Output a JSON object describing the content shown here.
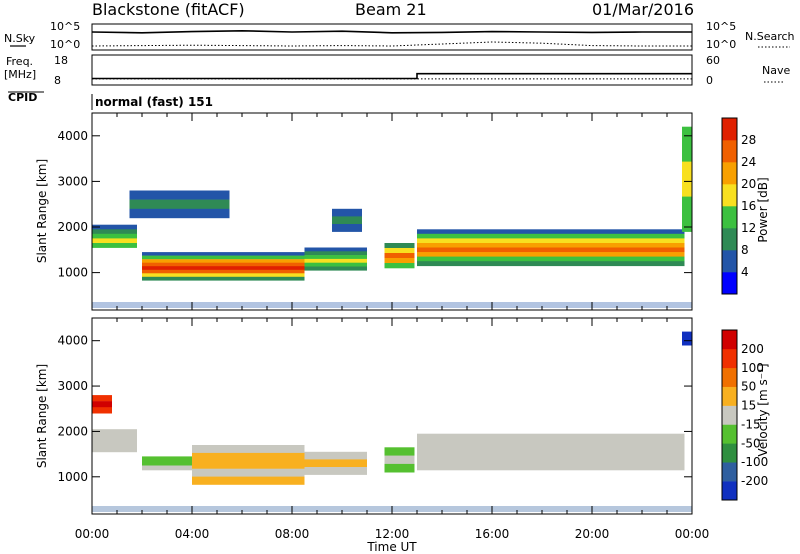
{
  "header": {
    "station": "Blackstone (fitACF)",
    "beam": "Beam 21",
    "date": "01/Mar/2016"
  },
  "top_panels": {
    "nsky_label": "N.Sky",
    "nsky_tick_high": "10^5",
    "nsky_tick_low": "10^0",
    "nsearch_label": "N.Search",
    "nsearch_tick_high": "10^5",
    "nsearch_tick_low": "10^0",
    "freq_label": "Freq.",
    "freq_unit": "[MHz]",
    "freq_tick_high": "18",
    "freq_tick_low": "8",
    "nave_label": "Nave",
    "nave_tick_high": "60",
    "nave_tick_low": "0",
    "cpid_label": "CPID",
    "cpid_text": "normal (fast) 151"
  },
  "axis": {
    "x_label": "Time UT",
    "x_ticks": [
      "00:00",
      "04:00",
      "08:00",
      "12:00",
      "16:00",
      "20:00",
      "00:00"
    ],
    "y_label": "Slant Range [km]",
    "y_ticks": [
      "1000",
      "2000",
      "3000",
      "4000"
    ]
  },
  "colorbars": {
    "power": {
      "label": "Power [dB]",
      "ticks": [
        "4",
        "8",
        "12",
        "16",
        "20",
        "24",
        "28"
      ],
      "colors": [
        "#0000ff",
        "#2355a8",
        "#2f8a55",
        "#3cc040",
        "#f8e020",
        "#f8a000",
        "#f06000",
        "#e02000"
      ]
    },
    "velocity": {
      "label": "Velocity [m s⁻¹]",
      "ticks": [
        "200",
        "100",
        "50",
        "15",
        "-15",
        "-50",
        "-100",
        "-200"
      ],
      "colors": [
        "#1030c0",
        "#2f5f9f",
        "#2f8f40",
        "#55c030",
        "#c8c8c0",
        "#f8b020",
        "#f07000",
        "#f03000",
        "#d00000"
      ]
    }
  },
  "chart_data": [
    {
      "type": "line",
      "title": "N.Sky / N.Search",
      "xlim": [
        0,
        24
      ],
      "x": [
        0,
        2,
        4,
        6,
        8,
        10,
        12,
        14,
        16,
        18,
        20,
        22,
        24
      ],
      "series": [
        {
          "name": "N.Sky",
          "values": [
            4,
            3.8,
            4.1,
            4.3,
            4,
            4.2,
            3.8,
            3.9,
            4.1,
            4,
            3.9,
            4,
            4
          ]
        },
        {
          "name": "N.Search",
          "values": [
            0.5,
            0.6,
            0.7,
            0.6,
            0.5,
            0.6,
            0.5,
            1,
            1.5,
            1.2,
            0.6,
            0.5,
            0.5
          ]
        }
      ]
    },
    {
      "type": "line",
      "title": "Freq. / Nave",
      "xlim": [
        0,
        24
      ],
      "x": [
        0,
        13,
        13,
        24
      ],
      "series": [
        {
          "name": "Freq.",
          "values": [
            10.5,
            10.5,
            12.7,
            12.7
          ]
        },
        {
          "name": "Nave",
          "values": [
            14,
            14,
            14,
            14
          ]
        }
      ]
    },
    {
      "type": "heatmap",
      "title": "Power",
      "xlim": [
        0,
        24
      ],
      "ylim": [
        180,
        4500
      ],
      "bands": [
        {
          "t0": 0,
          "t1": 1.8,
          "r0": 1550,
          "r1": 2050,
          "levels": [
            1,
            2,
            3,
            4,
            3
          ]
        },
        {
          "t0": 2,
          "t1": 8.5,
          "r0": 830,
          "r1": 1450,
          "levels": [
            1,
            3,
            5,
            6,
            7,
            6,
            4,
            2
          ]
        },
        {
          "t0": 8.5,
          "t1": 11,
          "r0": 1050,
          "r1": 1550,
          "levels": [
            1,
            2,
            3,
            4,
            3,
            2
          ]
        },
        {
          "t0": 11.7,
          "t1": 12.9,
          "r0": 1100,
          "r1": 1650,
          "levels": [
            2,
            4,
            6,
            5,
            3
          ]
        },
        {
          "t0": 13,
          "t1": 23.7,
          "r0": 1150,
          "r1": 1950,
          "levels": [
            1,
            3,
            4,
            5,
            6,
            5,
            3,
            2
          ]
        },
        {
          "t0": 1.5,
          "t1": 5.5,
          "r0": 2200,
          "r1": 2800,
          "levels": [
            1,
            2,
            1
          ]
        },
        {
          "t0": 9.6,
          "t1": 10.8,
          "r0": 1900,
          "r1": 2400,
          "levels": [
            1,
            2,
            1
          ]
        },
        {
          "t0": 23.6,
          "t1": 24,
          "r0": 1900,
          "r1": 4200,
          "levels": [
            3,
            4,
            3
          ]
        }
      ]
    },
    {
      "type": "heatmap",
      "title": "Velocity",
      "xlim": [
        0,
        24
      ],
      "ylim": [
        180,
        4500
      ],
      "bands": [
        {
          "t0": 0,
          "t1": 1.8,
          "r0": 1550,
          "r1": 2050,
          "levels": [
            4,
            4,
            4
          ]
        },
        {
          "t0": 2,
          "t1": 4,
          "r0": 1150,
          "r1": 1450,
          "levels": [
            3,
            3,
            4
          ]
        },
        {
          "t0": 4,
          "t1": 8.5,
          "r0": 830,
          "r1": 1700,
          "levels": [
            4,
            5,
            5,
            4,
            5
          ]
        },
        {
          "t0": 8.5,
          "t1": 11,
          "r0": 1050,
          "r1": 1550,
          "levels": [
            4,
            5,
            4
          ]
        },
        {
          "t0": 11.7,
          "t1": 12.9,
          "r0": 1100,
          "r1": 1650,
          "levels": [
            3,
            4,
            3
          ]
        },
        {
          "t0": 13,
          "t1": 23.7,
          "r0": 1150,
          "r1": 1950,
          "levels": [
            4,
            4,
            4
          ]
        },
        {
          "t0": 0,
          "t1": 0.8,
          "r0": 2400,
          "r1": 2800,
          "levels": [
            7,
            8,
            7
          ]
        },
        {
          "t0": 23.6,
          "t1": 24,
          "r0": 3900,
          "r1": 4200,
          "levels": [
            0,
            0
          ]
        }
      ]
    }
  ]
}
